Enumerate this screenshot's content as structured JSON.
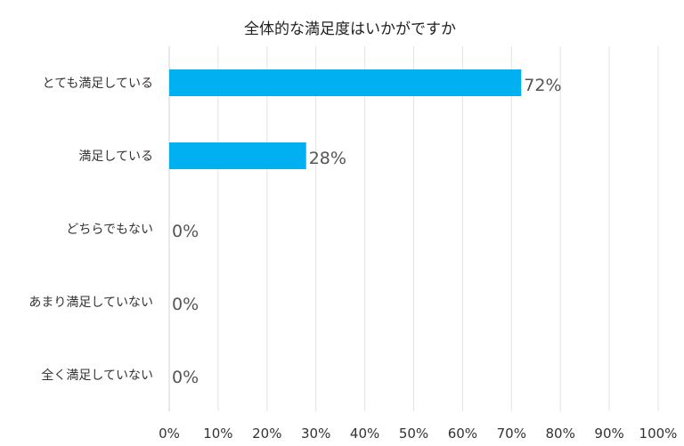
{
  "chart_data": {
    "type": "bar",
    "orientation": "horizontal",
    "title": "全体的な満足度はいかがですか",
    "categories": [
      "とても満足している",
      "満足している",
      "どちらでもない",
      "あまり満足していない",
      "全く満足していない"
    ],
    "values": [
      72,
      28,
      0,
      0,
      0
    ],
    "data_labels": [
      "72%",
      "28%",
      "0%",
      "0%",
      "0%"
    ],
    "xlim": [
      0,
      100
    ],
    "x_ticks": [
      0,
      10,
      20,
      30,
      40,
      50,
      60,
      70,
      80,
      90,
      100
    ],
    "x_tick_labels": [
      "0%",
      "10%",
      "20%",
      "30%",
      "40%",
      "50%",
      "60%",
      "70%",
      "80%",
      "90%",
      "100%"
    ],
    "grid": true,
    "legend": "none",
    "bar_color": "#00B0F0"
  }
}
